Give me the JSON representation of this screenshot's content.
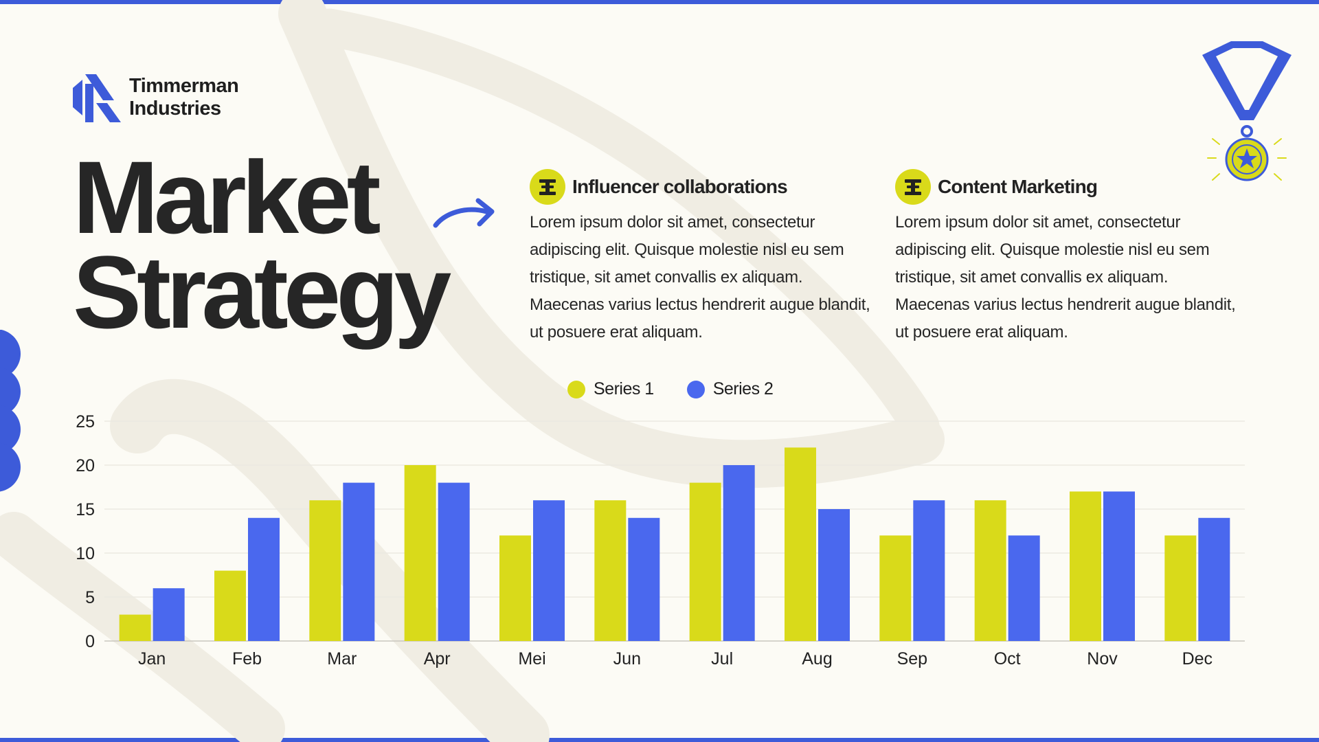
{
  "brand": {
    "line1": "Timmerman",
    "line2": "Industries",
    "accent": "#3d5bd9",
    "highlight": "#d9da1a"
  },
  "title": {
    "line1": "Market",
    "line2": "Strategy"
  },
  "features": [
    {
      "title": "Influencer collaborations",
      "body": "Lorem ipsum dolor sit amet, consectetur adipiscing elit. Quisque molestie nisl eu sem tristique, sit amet convallis ex aliquam. Maecenas varius lectus hendrerit augue blandit, ut posuere erat aliquam.",
      "icon": "bookmark-badge-icon"
    },
    {
      "title": "Content Marketing",
      "body": "Lorem ipsum dolor sit amet, consectetur adipiscing elit. Quisque molestie nisl eu sem tristique, sit amet convallis ex aliquam. Maecenas varius lectus hendrerit augue blandit, ut posuere erat aliquam.",
      "icon": "bookmark-badge-icon"
    }
  ],
  "chart_data": {
    "type": "bar",
    "categories": [
      "Jan",
      "Feb",
      "Mar",
      "Apr",
      "Mei",
      "Jun",
      "Jul",
      "Aug",
      "Sep",
      "Oct",
      "Nov",
      "Dec"
    ],
    "series": [
      {
        "name": "Series 1",
        "color": "#d9da1a",
        "values": [
          3,
          8,
          16,
          20,
          12,
          16,
          18,
          22,
          12,
          16,
          17,
          12
        ]
      },
      {
        "name": "Series 2",
        "color": "#4a68ee",
        "values": [
          6,
          14,
          18,
          18,
          16,
          14,
          20,
          15,
          16,
          12,
          17,
          14
        ]
      }
    ],
    "yticks": [
      "0",
      "5",
      "10",
      "15",
      "20",
      "25"
    ],
    "ylim": [
      0,
      25
    ],
    "grid": true,
    "legend": "top-center"
  }
}
